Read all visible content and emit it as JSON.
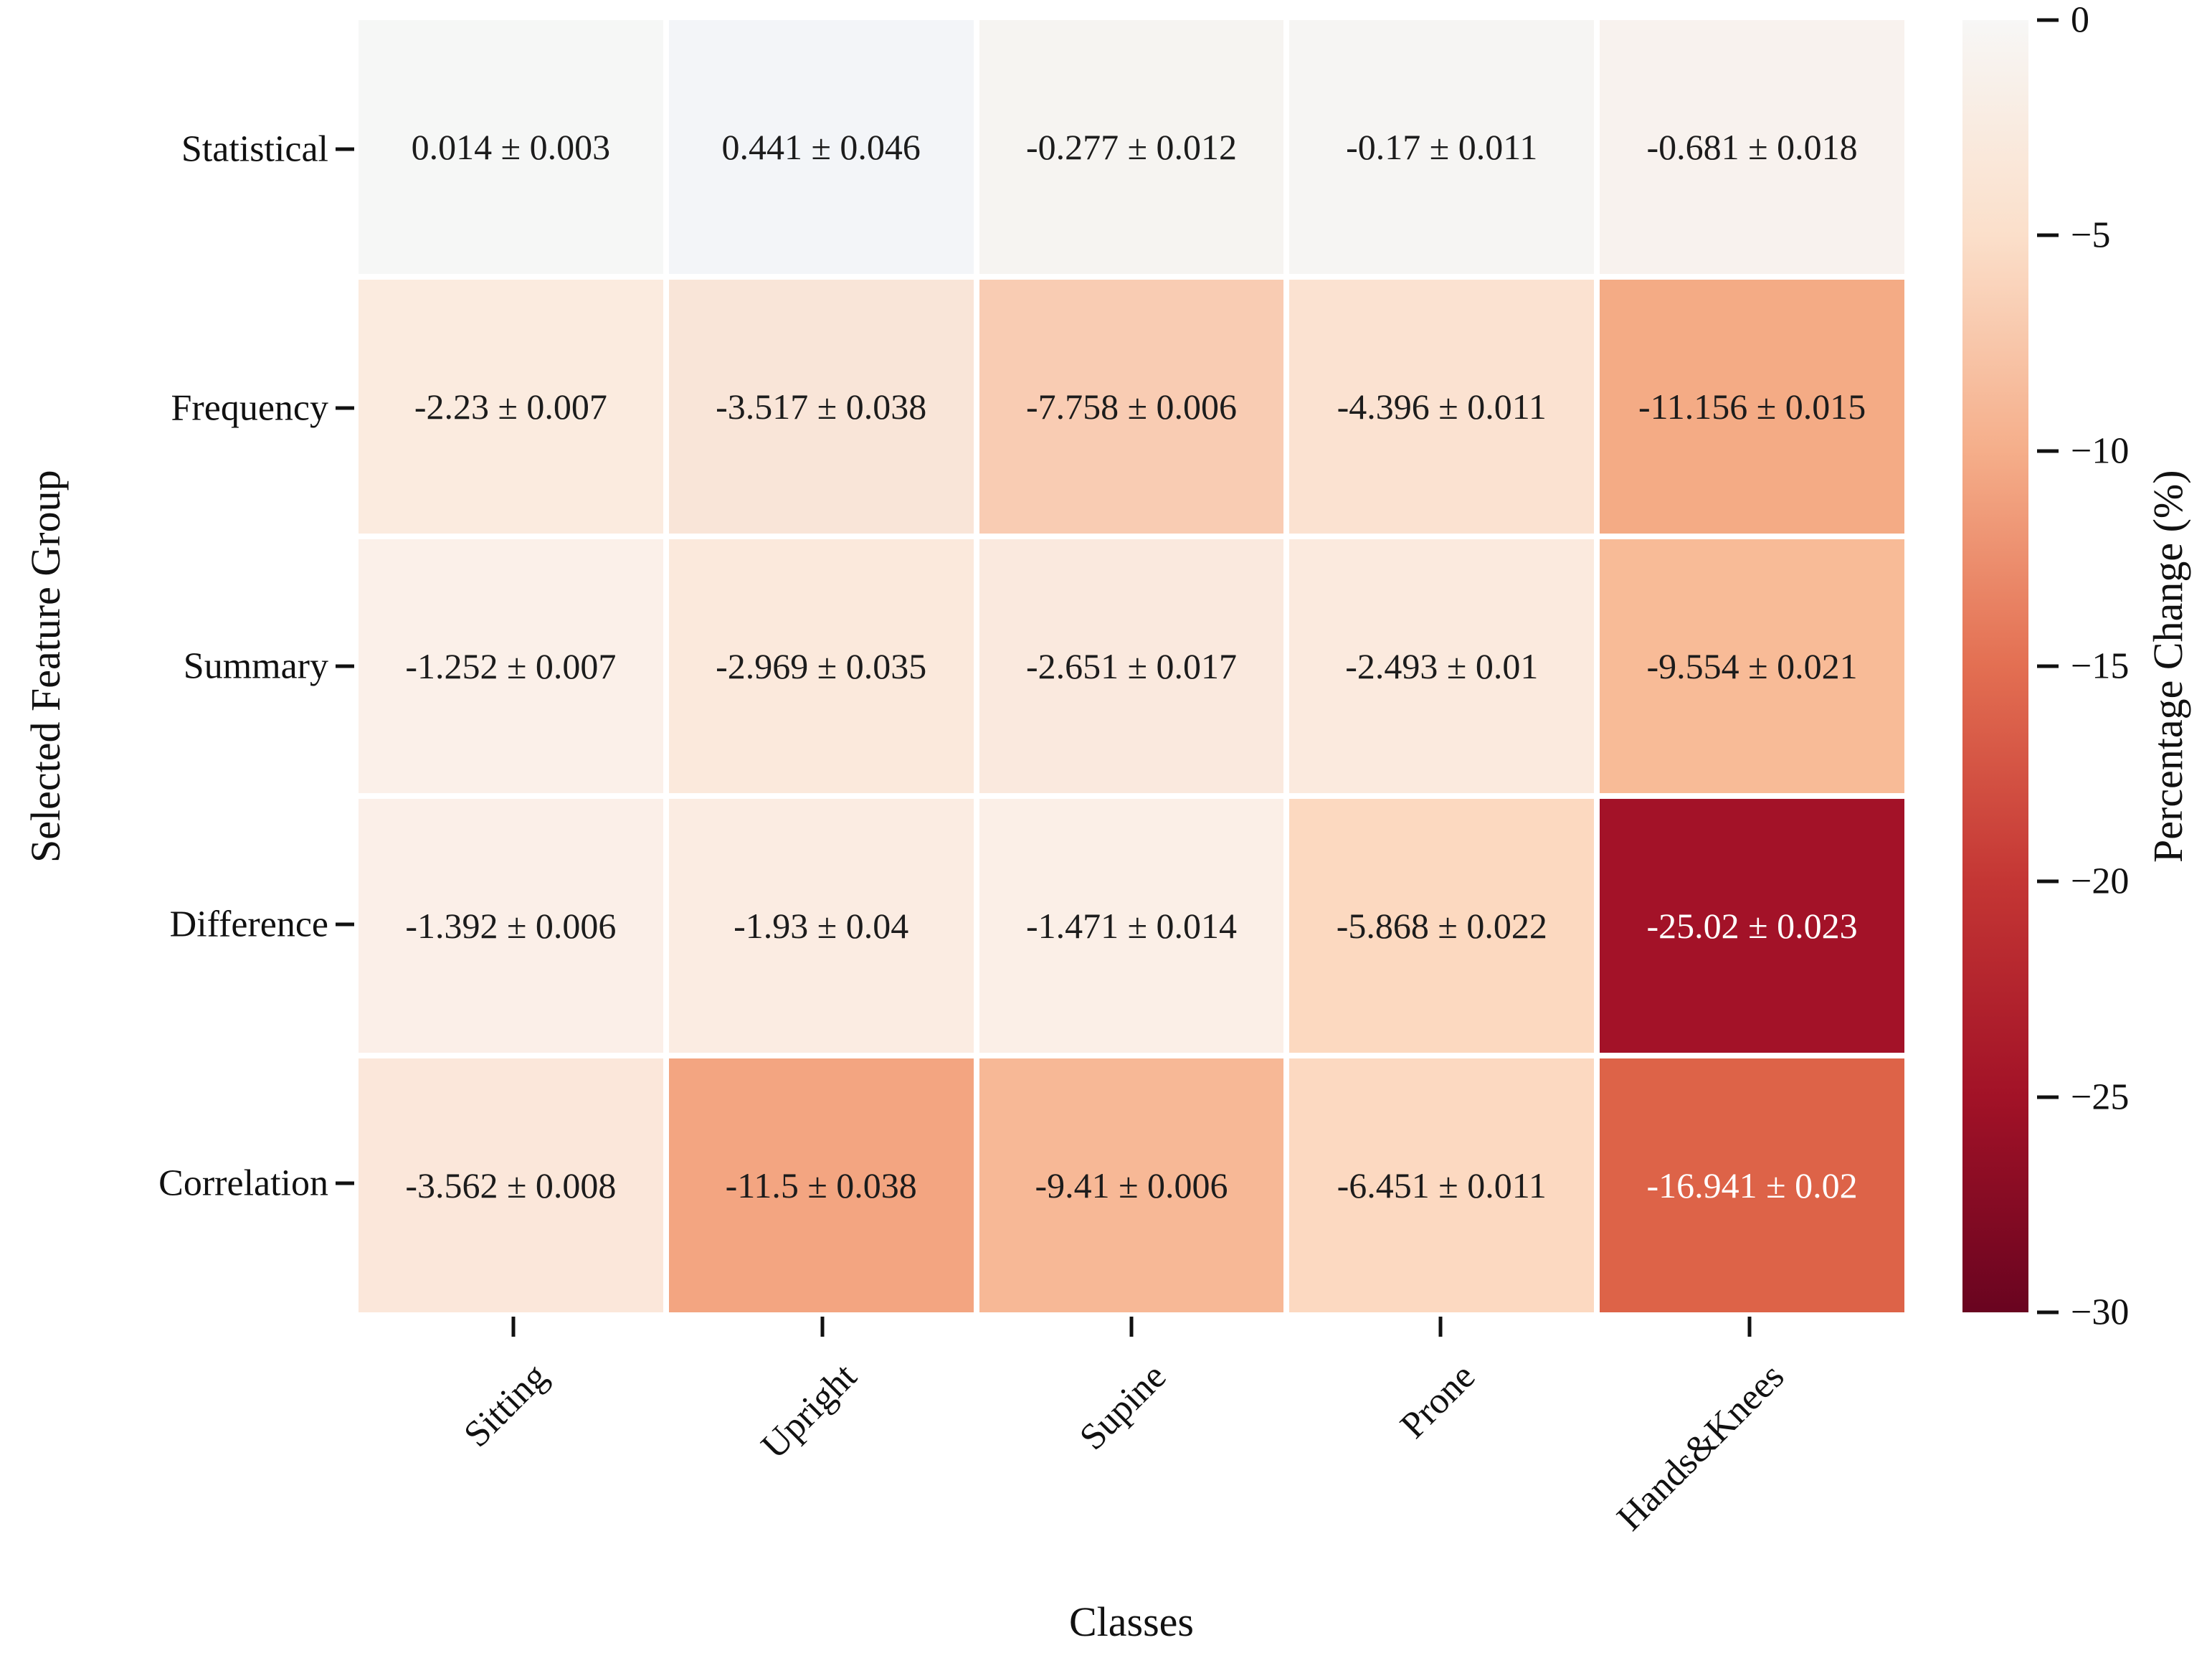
{
  "chart_data": {
    "type": "heatmap",
    "xlabel": "Classes",
    "ylabel": "Selected Feature Group",
    "colorbar_label": "Percentage Change (%)",
    "columns": [
      "Sitting",
      "Upright",
      "Supine",
      "Prone",
      "Hands&Knees"
    ],
    "rows": [
      "Statistical",
      "Frequency",
      "Summary",
      "Difference",
      "Correlation"
    ],
    "values": [
      [
        0.014,
        0.441,
        -0.277,
        -0.17,
        -0.681
      ],
      [
        -2.23,
        -3.517,
        -7.758,
        -4.396,
        -11.156
      ],
      [
        -1.252,
        -2.969,
        -2.651,
        -2.493,
        -9.554
      ],
      [
        -1.392,
        -1.93,
        -1.471,
        -5.868,
        -25.02
      ],
      [
        -3.562,
        -11.5,
        -9.41,
        -6.451,
        -16.941
      ]
    ],
    "errors": [
      [
        0.003,
        0.046,
        0.012,
        0.011,
        0.018
      ],
      [
        0.007,
        0.038,
        0.006,
        0.011,
        0.015
      ],
      [
        0.007,
        0.035,
        0.017,
        0.01,
        0.021
      ],
      [
        0.006,
        0.04,
        0.014,
        0.022,
        0.023
      ],
      [
        0.008,
        0.038,
        0.006,
        0.011,
        0.02
      ]
    ],
    "cell_labels": [
      [
        "0.014 ± 0.003",
        "0.441 ± 0.046",
        "-0.277 ± 0.012",
        "-0.17 ± 0.011",
        "-0.681 ± 0.018"
      ],
      [
        "-2.23 ± 0.007",
        "-3.517 ± 0.038",
        "-7.758 ± 0.006",
        "-4.396 ± 0.011",
        "-11.156 ± 0.015"
      ],
      [
        "-1.252 ± 0.007",
        "-2.969 ± 0.035",
        "-2.651 ± 0.017",
        "-2.493 ± 0.01",
        "-9.554 ± 0.021"
      ],
      [
        "-1.392 ± 0.006",
        "-1.93 ± 0.04",
        "-1.471 ± 0.014",
        "-5.868 ± 0.022",
        "-25.02 ± 0.023"
      ],
      [
        "-3.562 ± 0.008",
        "-11.5 ± 0.038",
        "-9.41 ± 0.006",
        "-6.451 ± 0.011",
        "-16.941 ± 0.02"
      ]
    ],
    "cell_colors": [
      [
        "#f6f7f6",
        "#f3f5f8",
        "#f6f4f1",
        "#f6f5f3",
        "#f8f2ee"
      ],
      [
        "#fbebdf",
        "#f9e5d8",
        "#f9ccb3",
        "#fbe2d1",
        "#f4ab85"
      ],
      [
        "#fbf0e9",
        "#fbe9dc",
        "#fae9de",
        "#fbeade",
        "#f8bb97"
      ],
      [
        "#fbefe8",
        "#fbece2",
        "#fbefe7",
        "#fcd9c0",
        "#a31228"
      ],
      [
        "#fbe7da",
        "#f3a581",
        "#f7b896",
        "#fcd9c1",
        "#dd6348"
      ]
    ],
    "cell_text_colors": [
      [
        "#1c1c1c",
        "#1c1c1c",
        "#1c1c1c",
        "#1c1c1c",
        "#1c1c1c"
      ],
      [
        "#1c1c1c",
        "#1c1c1c",
        "#1c1c1c",
        "#1c1c1c",
        "#1c1c1c"
      ],
      [
        "#1c1c1c",
        "#1c1c1c",
        "#1c1c1c",
        "#1c1c1c",
        "#1c1c1c"
      ],
      [
        "#1c1c1c",
        "#1c1c1c",
        "#1c1c1c",
        "#1c1c1c",
        "#ffffff"
      ],
      [
        "#1c1c1c",
        "#1c1c1c",
        "#1c1c1c",
        "#1c1c1c",
        "#ffffff"
      ]
    ],
    "colorbar": {
      "min": -30,
      "max": 0,
      "tick_labels": [
        "0",
        "−5",
        "−10",
        "−15",
        "−20",
        "−25",
        "−30"
      ],
      "gradient_stops": [
        "#f7f7f6",
        "#fbdfca",
        "#f5ae8a",
        "#e36f52",
        "#c43634",
        "#a21227",
        "#690420"
      ],
      "legend_position": "right"
    },
    "grid": false
  }
}
